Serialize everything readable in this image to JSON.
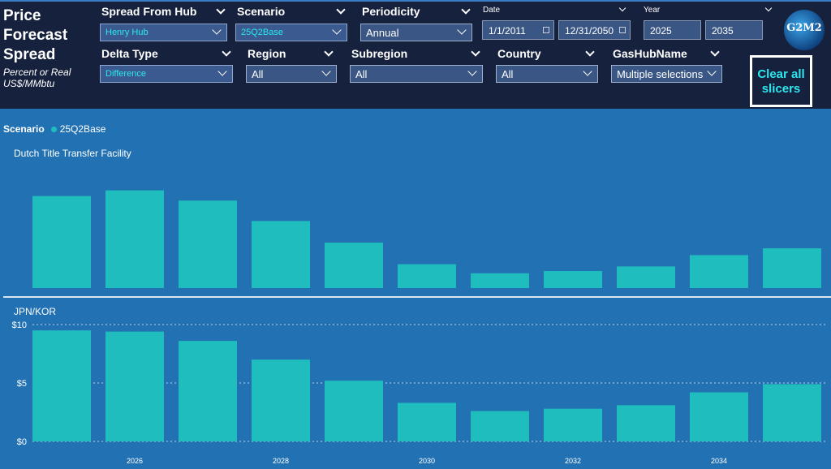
{
  "header": {
    "title_lines": [
      "Price",
      "Forecast",
      "Spread"
    ],
    "subtitle_lines": [
      "Percent or Real",
      "US$/MMbtu"
    ]
  },
  "slicers": {
    "spread_from_hub": {
      "label": "Spread From Hub",
      "value": "Henry Hub"
    },
    "scenario": {
      "label": "Scenario",
      "value": "25Q2Base"
    },
    "periodicity": {
      "label": "Periodicity",
      "value": "Annual"
    },
    "date": {
      "label": "Date",
      "start": "1/1/2011",
      "end": "12/31/2050"
    },
    "year": {
      "label": "Year",
      "start": "2025",
      "end": "2035"
    },
    "delta_type": {
      "label": "Delta Type",
      "value": "Difference"
    },
    "region": {
      "label": "Region",
      "value": "All"
    },
    "subregion": {
      "label": "Subregion",
      "value": "All"
    },
    "country": {
      "label": "Country",
      "value": "All"
    },
    "gashubname": {
      "label": "GasHubName",
      "value": "Multiple selections"
    }
  },
  "clear_button": {
    "line1": "Clear all",
    "line2": "slicers"
  },
  "logo": {
    "text": "G2M2"
  },
  "legend": {
    "title": "Scenario",
    "item": "25Q2Base"
  },
  "colors": {
    "bar": "#1fbdbe",
    "background": "#2271b3",
    "header": "#16213d",
    "accent": "#2be8ef"
  },
  "chart_data": [
    {
      "type": "bar",
      "title": "Dutch Title Transfer Facility",
      "categories": [
        "2025",
        "2026",
        "2027",
        "2028",
        "2029",
        "2030",
        "2031",
        "2032",
        "2033",
        "2034",
        "2035"
      ],
      "values": [
        8.1,
        8.6,
        7.7,
        5.9,
        4.0,
        2.1,
        1.3,
        1.5,
        1.9,
        2.9,
        3.5
      ],
      "ylim": [
        0,
        10
      ]
    },
    {
      "type": "bar",
      "title": "JPN/KOR",
      "categories": [
        "2025",
        "2026",
        "2027",
        "2028",
        "2029",
        "2030",
        "2031",
        "2032",
        "2033",
        "2034",
        "2035"
      ],
      "values": [
        9.5,
        9.4,
        8.6,
        7.0,
        5.2,
        3.3,
        2.6,
        2.8,
        3.1,
        4.2,
        4.9
      ],
      "ylim": [
        0,
        10
      ],
      "yticks": [
        {
          "v": 0,
          "label": "$0"
        },
        {
          "v": 5,
          "label": "$5"
        },
        {
          "v": 10,
          "label": "$10"
        }
      ],
      "xticks": [
        "2026",
        "2028",
        "2030",
        "2032",
        "2034"
      ]
    }
  ]
}
